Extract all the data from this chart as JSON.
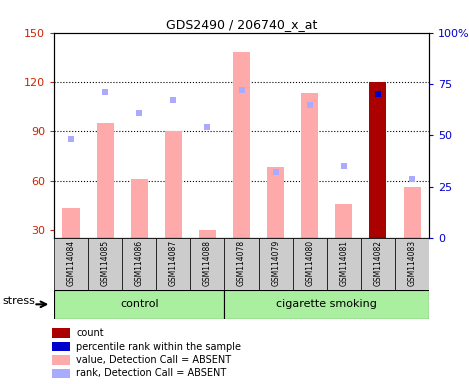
{
  "title": "GDS2490 / 206740_x_at",
  "samples": [
    "GSM114084",
    "GSM114085",
    "GSM114086",
    "GSM114087",
    "GSM114088",
    "GSM114078",
    "GSM114079",
    "GSM114080",
    "GSM114081",
    "GSM114082",
    "GSM114083"
  ],
  "groups": {
    "control": [
      "GSM114084",
      "GSM114085",
      "GSM114086",
      "GSM114087",
      "GSM114088"
    ],
    "cigarette smoking": [
      "GSM114078",
      "GSM114079",
      "GSM114080",
      "GSM114081",
      "GSM114082",
      "GSM114083"
    ]
  },
  "ylim_left": [
    25,
    150
  ],
  "ylim_right": [
    0,
    100
  ],
  "yticks_left": [
    30,
    60,
    90,
    120,
    150
  ],
  "yticks_right": [
    0,
    25,
    50,
    75,
    100
  ],
  "ylabel_left_color": "#cc2200",
  "ylabel_right_color": "#0000cc",
  "value_bars": {
    "GSM114084": 43,
    "GSM114085": 95,
    "GSM114086": 61,
    "GSM114087": 90,
    "GSM114088": 30,
    "GSM114078": 138,
    "GSM114079": 68,
    "GSM114080": 113,
    "GSM114081": 46,
    "GSM114082": 120,
    "GSM114083": 56
  },
  "rank_markers": {
    "GSM114084": 48,
    "GSM114085": 71,
    "GSM114086": 61,
    "GSM114087": 67,
    "GSM114088": 54,
    "GSM114078": 72,
    "GSM114079": 32,
    "GSM114080": 65,
    "GSM114081": 35,
    "GSM114082": 70,
    "GSM114083": 29
  },
  "count_samples": [
    "GSM114082"
  ],
  "bar_color_absent": "#ffaaaa",
  "bar_color_count": "#aa0000",
  "rank_color_absent": "#aaaaff",
  "rank_color_count": "#0000cc",
  "legend": [
    {
      "color": "#aa0000",
      "label": "count"
    },
    {
      "color": "#0000cc",
      "label": "percentile rank within the sample"
    },
    {
      "color": "#ffaaaa",
      "label": "value, Detection Call = ABSENT"
    },
    {
      "color": "#aaaaff",
      "label": "rank, Detection Call = ABSENT"
    }
  ],
  "control_label": "control",
  "smoking_label": "cigarette smoking",
  "stress_label": "stress",
  "group_bg_color": "#aaeea0",
  "sample_bg_color": "#cccccc",
  "bar_width": 0.5
}
